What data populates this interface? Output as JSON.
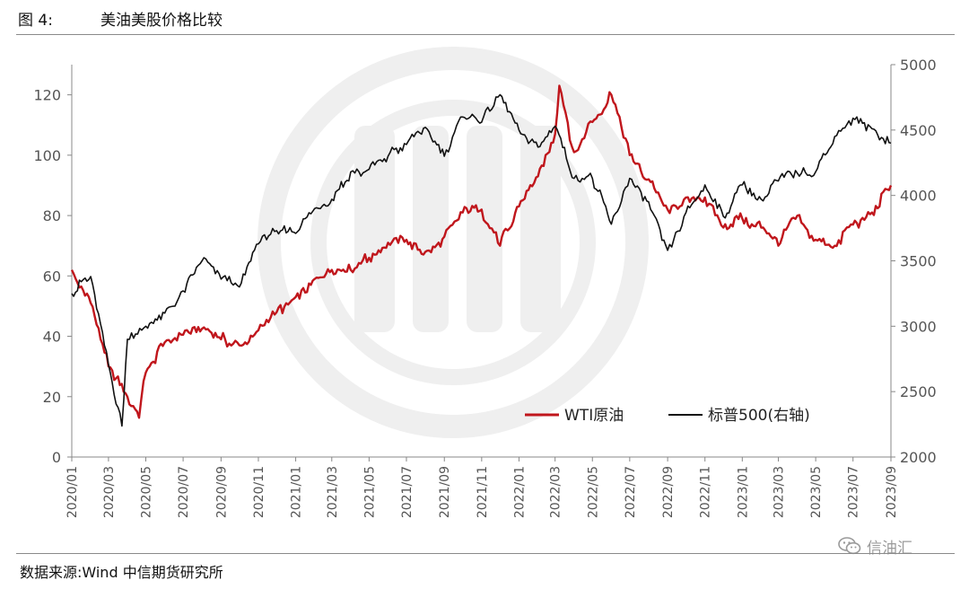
{
  "header": {
    "figure_label": "图 4:",
    "title": "美油美股价格比较"
  },
  "footer": {
    "source": "数据来源:Wind 中信期货研究所",
    "watermark_text": "信油汇",
    "watermark_icon": "wechat-icon"
  },
  "colors": {
    "wti": "#c0161c",
    "sp500": "#111111",
    "axis": "#888888",
    "watermark": "#efefef"
  },
  "chart_data": {
    "type": "line",
    "title": "美油美股价格比较",
    "x_tick_labels": [
      "2020/01",
      "2020/03",
      "2020/05",
      "2020/07",
      "2020/09",
      "2020/11",
      "2021/01",
      "2021/03",
      "2021/05",
      "2021/07",
      "2021/09",
      "2021/11",
      "2022/01",
      "2022/03",
      "2022/05",
      "2022/07",
      "2022/09",
      "2022/11",
      "2023/01",
      "2023/03",
      "2023/05",
      "2023/07",
      "2023/09"
    ],
    "x_range": [
      "2020/01",
      "2023/09"
    ],
    "y_left": {
      "range": [
        0,
        130
      ],
      "ticks": [
        0,
        20,
        40,
        60,
        80,
        100,
        120
      ]
    },
    "y_right": {
      "range": [
        2000,
        5000
      ],
      "ticks": [
        2000,
        2500,
        3000,
        3500,
        4000,
        4500,
        5000
      ]
    },
    "legend": {
      "position": "bottom-right"
    },
    "series": [
      {
        "name": "WTI原油",
        "axis": "left",
        "color": "#c0161c",
        "points": [
          [
            "2020/01",
            62
          ],
          [
            "2020/02",
            51
          ],
          [
            "2020/03",
            30
          ],
          [
            "2020/04",
            20
          ],
          [
            "2020/04/20",
            13
          ],
          [
            "2020/05",
            28
          ],
          [
            "2020/06",
            38
          ],
          [
            "2020/07",
            40.5
          ],
          [
            "2020/08",
            42.5
          ],
          [
            "2020/09",
            39
          ],
          [
            "2020/10",
            37
          ],
          [
            "2020/11",
            42
          ],
          [
            "2020/12",
            48
          ],
          [
            "2021/01",
            53
          ],
          [
            "2021/02",
            59
          ],
          [
            "2021/03",
            62
          ],
          [
            "2021/04",
            62
          ],
          [
            "2021/05",
            66
          ],
          [
            "2021/06",
            71
          ],
          [
            "2021/07",
            72
          ],
          [
            "2021/08",
            68
          ],
          [
            "2021/09",
            73
          ],
          [
            "2021/10",
            81
          ],
          [
            "2021/11",
            82
          ],
          [
            "2021/12",
            70
          ],
          [
            "2022/01",
            83
          ],
          [
            "2022/02",
            93
          ],
          [
            "2022/03/08",
            123
          ],
          [
            "2022/03",
            107
          ],
          [
            "2022/04",
            101
          ],
          [
            "2022/05",
            111
          ],
          [
            "2022/06",
            120
          ],
          [
            "2022/07",
            100
          ],
          [
            "2022/08",
            92
          ],
          [
            "2022/09",
            82
          ],
          [
            "2022/10",
            86
          ],
          [
            "2022/11",
            86
          ],
          [
            "2022/12",
            76
          ],
          [
            "2023/01",
            79
          ],
          [
            "2023/02",
            76
          ],
          [
            "2023/03",
            70
          ],
          [
            "2023/04",
            80
          ],
          [
            "2023/05",
            72
          ],
          [
            "2023/06",
            70
          ],
          [
            "2023/07",
            77
          ],
          [
            "2023/08",
            81
          ],
          [
            "2023/09",
            90
          ]
        ]
      },
      {
        "name": "标普500(右轴)",
        "axis": "right",
        "color": "#111111",
        "points": [
          [
            "2020/01",
            3250
          ],
          [
            "2020/02",
            3380
          ],
          [
            "2020/03/23",
            2237
          ],
          [
            "2020/04",
            2900
          ],
          [
            "2020/05",
            3000
          ],
          [
            "2020/06",
            3100
          ],
          [
            "2020/07",
            3270
          ],
          [
            "2020/08",
            3500
          ],
          [
            "2020/09",
            3360
          ],
          [
            "2020/10",
            3300
          ],
          [
            "2020/11",
            3630
          ],
          [
            "2020/12",
            3730
          ],
          [
            "2021/01",
            3710
          ],
          [
            "2021/02",
            3900
          ],
          [
            "2021/03",
            3970
          ],
          [
            "2021/04",
            4180
          ],
          [
            "2021/05",
            4200
          ],
          [
            "2021/06",
            4300
          ],
          [
            "2021/07",
            4390
          ],
          [
            "2021/08",
            4520
          ],
          [
            "2021/09",
            4300
          ],
          [
            "2021/10",
            4600
          ],
          [
            "2021/11",
            4560
          ],
          [
            "2021/12",
            4770
          ],
          [
            "2022/01",
            4500
          ],
          [
            "2022/02",
            4370
          ],
          [
            "2022/03",
            4530
          ],
          [
            "2022/04",
            4130
          ],
          [
            "2022/05",
            4130
          ],
          [
            "2022/06",
            3780
          ],
          [
            "2022/07",
            4130
          ],
          [
            "2022/08",
            3950
          ],
          [
            "2022/09",
            3580
          ],
          [
            "2022/10",
            3870
          ],
          [
            "2022/11",
            4080
          ],
          [
            "2022/12",
            3840
          ],
          [
            "2023/01",
            4080
          ],
          [
            "2023/02",
            3970
          ],
          [
            "2023/03",
            4110
          ],
          [
            "2023/04",
            4170
          ],
          [
            "2023/05",
            4180
          ],
          [
            "2023/06",
            4450
          ],
          [
            "2023/07",
            4590
          ],
          [
            "2023/08",
            4510
          ],
          [
            "2023/09",
            4400
          ]
        ]
      }
    ]
  }
}
